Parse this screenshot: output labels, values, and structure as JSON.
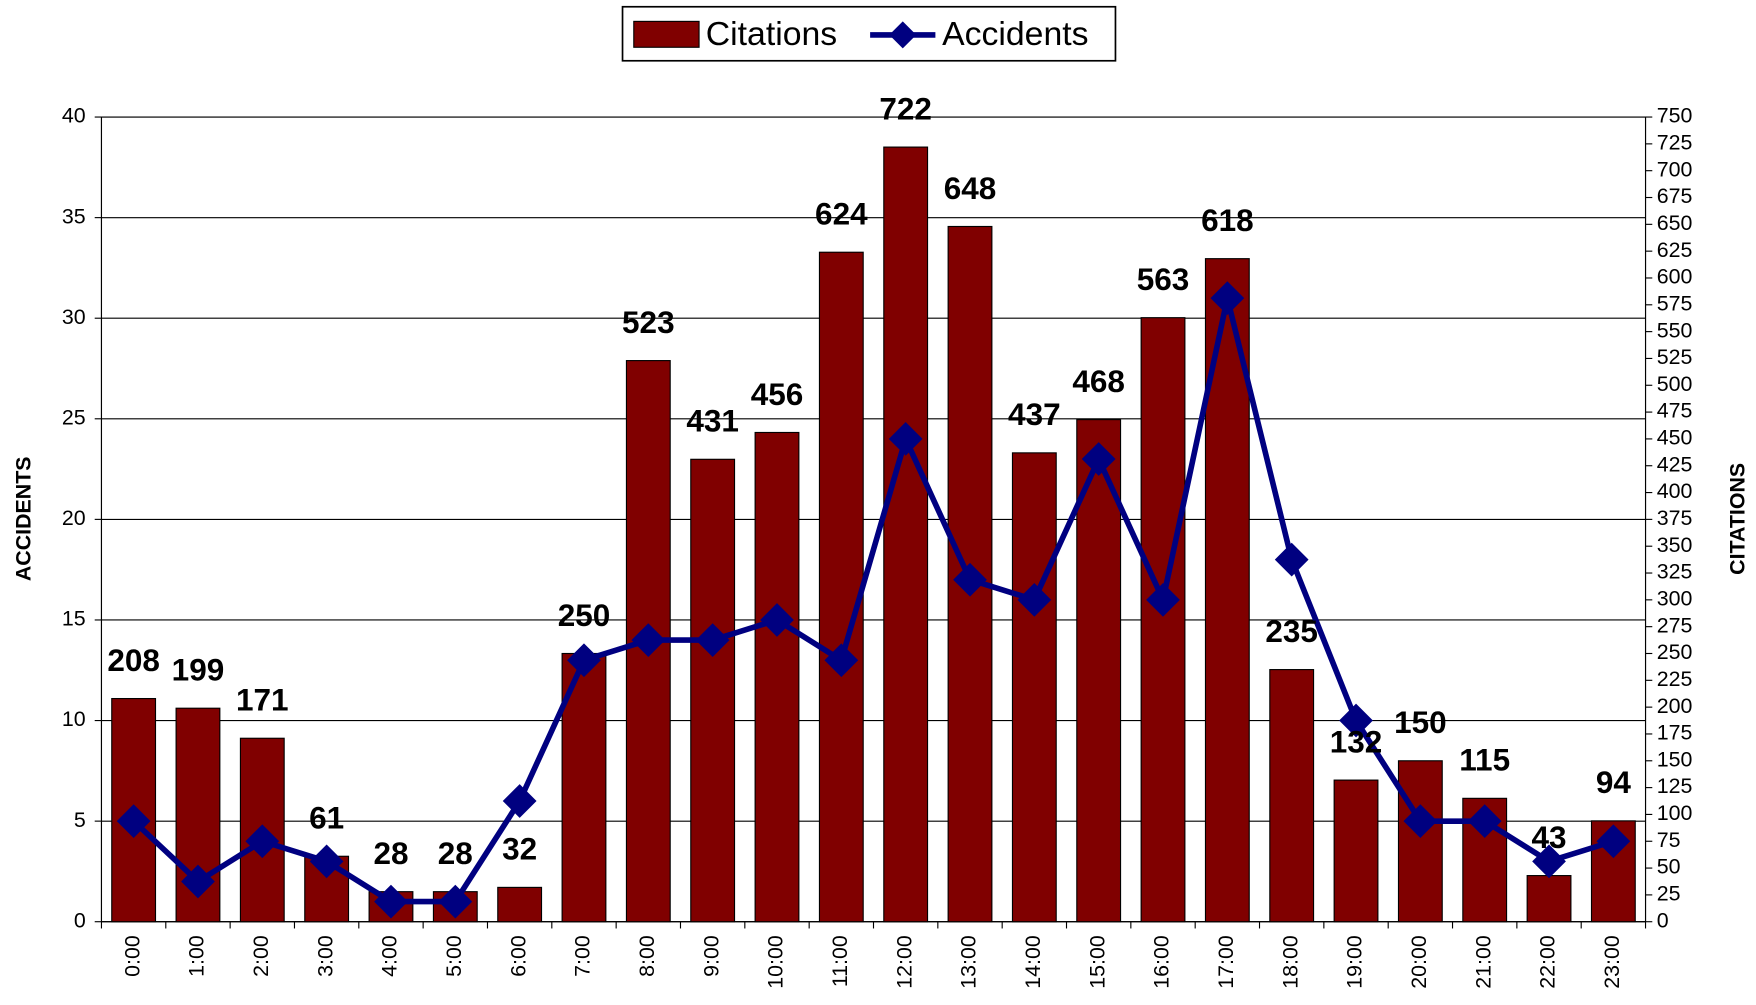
{
  "chart_data": {
    "type": "bar-line",
    "categories": [
      "0:00",
      "1:00",
      "2:00",
      "3:00",
      "4:00",
      "5:00",
      "6:00",
      "7:00",
      "8:00",
      "9:00",
      "10:00",
      "11:00",
      "12:00",
      "13:00",
      "14:00",
      "15:00",
      "16:00",
      "17:00",
      "18:00",
      "19:00",
      "20:00",
      "21:00",
      "22:00",
      "23:00"
    ],
    "series": [
      {
        "name": "Citations",
        "color": "#800000",
        "axis": "y2",
        "kind": "bar",
        "values": [
          208,
          199,
          171,
          61,
          28,
          28,
          32,
          250,
          523,
          431,
          456,
          624,
          722,
          648,
          437,
          468,
          563,
          618,
          235,
          132,
          150,
          115,
          43,
          94
        ]
      },
      {
        "name": "Accidents",
        "color": "#000080",
        "kind": "line",
        "values": [
          5,
          2,
          4,
          3,
          1,
          1,
          6,
          13,
          14,
          14,
          15,
          13,
          24,
          17,
          16,
          23,
          16,
          31,
          18,
          10,
          5,
          5,
          3,
          4
        ]
      }
    ],
    "y_label": "ACCIDENTS",
    "y2_label": "CITATIONS",
    "ylim": [
      0,
      40
    ],
    "yticks": [
      0,
      5,
      10,
      15,
      20,
      25,
      30,
      35,
      40
    ],
    "y2lim": [
      0,
      750
    ],
    "y2ticks": [
      0,
      25,
      50,
      75,
      100,
      125,
      150,
      175,
      200,
      225,
      250,
      275,
      300,
      325,
      350,
      375,
      400,
      425,
      450,
      475,
      500,
      525,
      550,
      575,
      600,
      625,
      650,
      675,
      700,
      725,
      750
    ],
    "grid": true,
    "legend": "top"
  }
}
